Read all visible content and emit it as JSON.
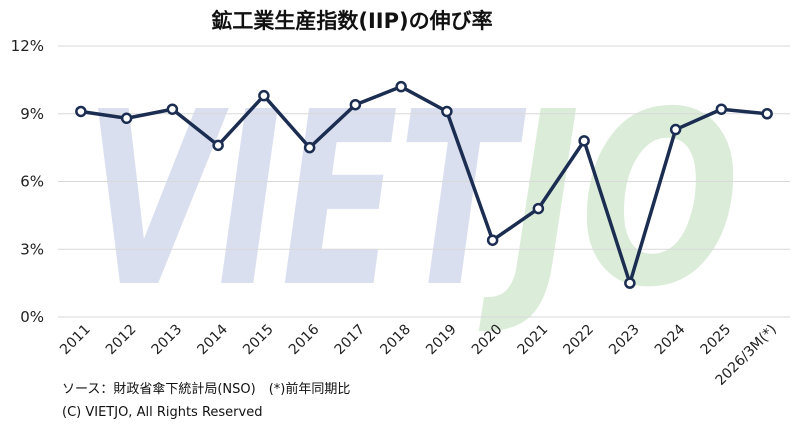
{
  "chart_data": {
    "type": "line",
    "title": "鉱工業生産指数(IIP)の伸び率",
    "categories": [
      "2011",
      "2012",
      "2013",
      "2014",
      "2015",
      "2016",
      "2017",
      "2018",
      "2019",
      "2020",
      "2021",
      "2022",
      "2023",
      "2024",
      "2025",
      "2026/3M(*)"
    ],
    "series": [
      {
        "values": [
          9.1,
          8.8,
          9.2,
          7.6,
          9.8,
          7.5,
          9.4,
          10.2,
          9.1,
          3.4,
          4.8,
          7.8,
          1.5,
          8.3,
          9.2,
          9.0
        ]
      }
    ],
    "ylim": [
      0,
      12
    ],
    "yticks": [
      0,
      3,
      6,
      9,
      12
    ],
    "ytick_labels": [
      "0%",
      "3%",
      "6%",
      "9%",
      "12%"
    ],
    "grid": "horizontal",
    "colors": {
      "line": "#1c2d52",
      "marker_fill": "#ffffff",
      "watermark_viet": "#c9d0e6",
      "watermark_jo": "#cfe6cc"
    }
  },
  "watermark": {
    "part1": "VIET",
    "part2": "JO"
  },
  "footer": {
    "source": "ソース：財政省傘下統計局(NSO)　(*)前年同期比",
    "copyright": "(C) VIETJO, All Rights Reserved"
  }
}
